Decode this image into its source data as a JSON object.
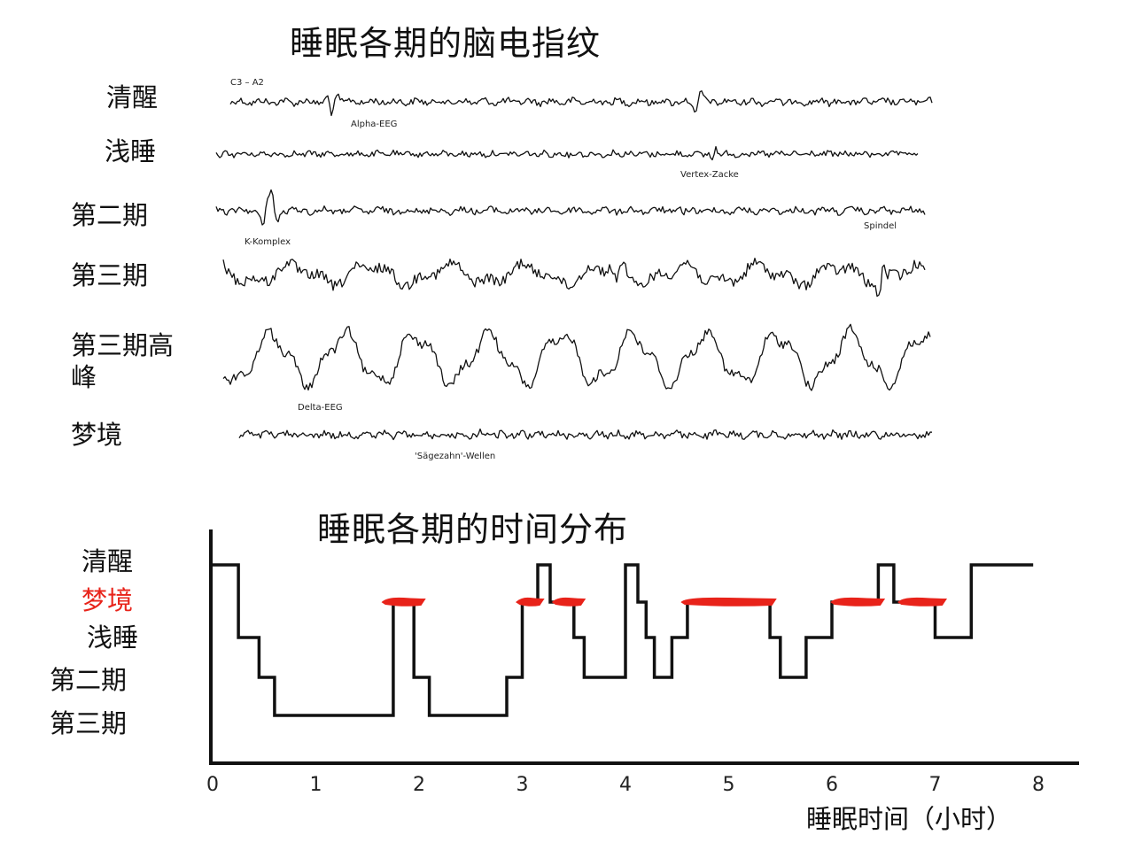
{
  "eeg": {
    "title": "睡眠各期的脑电指纹",
    "channel_label": "C3 – A2",
    "stages": [
      {
        "label": "清醒",
        "annotation": "Alpha-EEG"
      },
      {
        "label": "浅睡",
        "annotation": "Vertex-Zacke"
      },
      {
        "label": "第二期",
        "annotation": "K-Komplex",
        "annotation2": "Spindel"
      },
      {
        "label": "第三期",
        "annotation": ""
      },
      {
        "label": "第三期高峰",
        "annotation": "Delta-EEG"
      },
      {
        "label": "梦境",
        "annotation": "'Sägezahn'-Wellen"
      }
    ]
  },
  "hypnogram": {
    "title": "睡眠各期的时间分布",
    "y_labels": {
      "wake": "清醒",
      "rem": "梦境",
      "light": "浅睡",
      "stage2": "第二期",
      "stage3": "第三期"
    },
    "x_label": "睡眠时间（小时）"
  },
  "chart_data": [
    {
      "type": "line",
      "title": "睡眠各期的时间分布",
      "xlabel": "睡眠时间（小时）",
      "ylabel": "",
      "xlim": [
        0,
        8
      ],
      "x_ticks": [
        "0",
        "1",
        "2",
        "3",
        "4",
        "5",
        "6",
        "7",
        "8"
      ],
      "y_categories": [
        "第三期",
        "第二期",
        "浅睡",
        "梦境",
        "清醒"
      ],
      "rem_color": "#e8231a",
      "line_color": "#111111",
      "series": [
        {
          "values": [
            [
              0.0,
              4
            ],
            [
              0.25,
              4
            ],
            [
              0.25,
              2
            ],
            [
              0.45,
              2
            ],
            [
              0.45,
              1
            ],
            [
              0.6,
              1
            ],
            [
              0.6,
              0
            ],
            [
              1.75,
              0
            ],
            [
              1.75,
              3
            ],
            [
              1.95,
              3
            ],
            [
              1.95,
              1
            ],
            [
              2.1,
              1
            ],
            [
              2.1,
              0
            ],
            [
              2.85,
              0
            ],
            [
              2.85,
              1
            ],
            [
              3.0,
              1
            ],
            [
              3.0,
              3
            ],
            [
              3.15,
              3
            ],
            [
              3.15,
              4
            ],
            [
              3.27,
              4
            ],
            [
              3.27,
              3
            ],
            [
              3.5,
              3
            ],
            [
              3.5,
              2
            ],
            [
              3.6,
              2
            ],
            [
              3.6,
              1
            ],
            [
              4.0,
              1
            ],
            [
              4.0,
              4
            ],
            [
              4.12,
              4
            ],
            [
              4.12,
              3
            ],
            [
              4.2,
              3
            ],
            [
              4.2,
              2
            ],
            [
              4.28,
              2
            ],
            [
              4.28,
              1
            ],
            [
              4.45,
              1
            ],
            [
              4.45,
              2
            ],
            [
              4.6,
              2
            ],
            [
              4.6,
              3
            ],
            [
              5.4,
              3
            ],
            [
              5.4,
              2
            ],
            [
              5.5,
              2
            ],
            [
              5.5,
              1
            ],
            [
              5.75,
              1
            ],
            [
              5.75,
              2
            ],
            [
              6.0,
              2
            ],
            [
              6.0,
              3
            ],
            [
              6.45,
              3
            ],
            [
              6.45,
              4
            ],
            [
              6.6,
              4
            ],
            [
              6.6,
              3
            ],
            [
              7.0,
              3
            ],
            [
              7.0,
              2
            ],
            [
              7.35,
              2
            ],
            [
              7.35,
              4
            ],
            [
              7.95,
              4
            ]
          ]
        }
      ],
      "rem_periods": [
        [
          1.65,
          2.05
        ],
        [
          2.95,
          3.2
        ],
        [
          3.3,
          3.6
        ],
        [
          4.55,
          5.45
        ],
        [
          6.0,
          6.5
        ],
        [
          6.65,
          7.1
        ]
      ]
    }
  ]
}
